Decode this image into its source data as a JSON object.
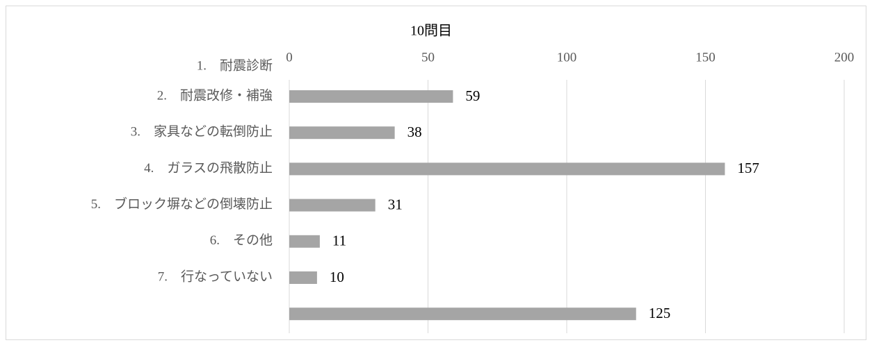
{
  "chart_data": {
    "type": "bar",
    "orientation": "horizontal",
    "title": "10問目",
    "categories": [
      "1.　耐震診断",
      "2.　耐震改修・補強",
      "3.　家具などの転倒防止",
      "4.　ガラスの飛散防止",
      "5.　ブロック塀などの倒壊防止",
      "6.　その他",
      "7.　行なっていない",
      null
    ],
    "values": [
      59,
      38,
      157,
      31,
      11,
      10,
      125,
      null
    ],
    "color": "#a5a5a5",
    "xlim": [
      0,
      200
    ],
    "xticks": [
      0,
      50,
      100,
      150,
      200
    ],
    "grid": true
  }
}
